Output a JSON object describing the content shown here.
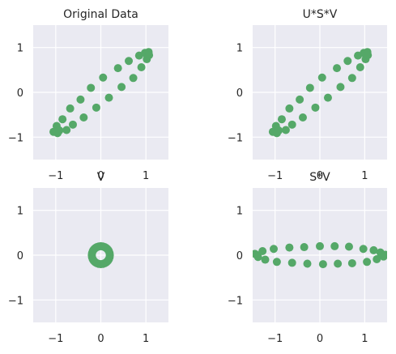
{
  "colors": {
    "face": "#EAEAF2",
    "grid": "#FFFFFF",
    "marker": "#55A868",
    "text": "#262626"
  },
  "chart_data": [
    {
      "type": "scatter",
      "title": "Original Data",
      "xlim": [
        -1.5,
        1.5
      ],
      "ylim": [
        -1.5,
        1.5
      ],
      "xticks": [
        -1,
        0,
        1
      ],
      "yticks": [
        -1,
        0,
        1
      ],
      "xtick_labels": [
        "−1",
        "0",
        "1"
      ],
      "ytick_labels": [
        "−1",
        "0",
        "1"
      ],
      "grid": true,
      "points": [
        [
          -1.05,
          -0.88
        ],
        [
          -0.96,
          -0.91
        ],
        [
          -0.98,
          -0.75
        ],
        [
          -0.92,
          -0.85
        ],
        [
          -0.85,
          -0.6
        ],
        [
          -0.76,
          -0.84
        ],
        [
          -0.68,
          -0.36
        ],
        [
          -0.62,
          -0.72
        ],
        [
          -0.45,
          -0.16
        ],
        [
          -0.38,
          -0.56
        ],
        [
          -0.22,
          0.1
        ],
        [
          -0.1,
          -0.34
        ],
        [
          0.05,
          0.33
        ],
        [
          0.18,
          -0.12
        ],
        [
          0.38,
          0.54
        ],
        [
          0.46,
          0.12
        ],
        [
          0.62,
          0.7
        ],
        [
          0.72,
          0.32
        ],
        [
          0.85,
          0.82
        ],
        [
          0.9,
          0.56
        ],
        [
          0.98,
          0.88
        ],
        [
          1.02,
          0.74
        ],
        [
          1.06,
          0.9
        ],
        [
          1.07,
          0.83
        ]
      ]
    },
    {
      "type": "scatter",
      "title": "U*S*V",
      "xlim": [
        -1.5,
        1.5
      ],
      "ylim": [
        -1.5,
        1.5
      ],
      "xticks": [
        -1,
        0,
        1
      ],
      "yticks": [
        -1,
        0,
        1
      ],
      "xtick_labels": [
        "−1",
        "0",
        "1"
      ],
      "ytick_labels": [
        "−1",
        "0",
        "1"
      ],
      "grid": true,
      "points": [
        [
          -1.05,
          -0.88
        ],
        [
          -0.96,
          -0.91
        ],
        [
          -0.98,
          -0.75
        ],
        [
          -0.92,
          -0.85
        ],
        [
          -0.85,
          -0.6
        ],
        [
          -0.76,
          -0.84
        ],
        [
          -0.68,
          -0.36
        ],
        [
          -0.62,
          -0.72
        ],
        [
          -0.45,
          -0.16
        ],
        [
          -0.38,
          -0.56
        ],
        [
          -0.22,
          0.1
        ],
        [
          -0.1,
          -0.34
        ],
        [
          0.05,
          0.33
        ],
        [
          0.18,
          -0.12
        ],
        [
          0.38,
          0.54
        ],
        [
          0.46,
          0.12
        ],
        [
          0.62,
          0.7
        ],
        [
          0.72,
          0.32
        ],
        [
          0.85,
          0.82
        ],
        [
          0.9,
          0.56
        ],
        [
          0.98,
          0.88
        ],
        [
          1.02,
          0.74
        ],
        [
          1.06,
          0.9
        ],
        [
          1.07,
          0.83
        ]
      ]
    },
    {
      "type": "scatter",
      "title": "V",
      "xlim": [
        -1.5,
        1.5
      ],
      "ylim": [
        -1.5,
        1.5
      ],
      "xticks": [
        -1,
        0,
        1
      ],
      "yticks": [
        -1,
        0,
        1
      ],
      "xtick_labels": [
        "−1",
        "0",
        "1"
      ],
      "ytick_labels": [
        "−1",
        "0",
        "1"
      ],
      "grid": true,
      "points": [
        [
          0.2,
          0.0
        ],
        [
          0.195,
          0.045
        ],
        [
          0.18,
          0.087
        ],
        [
          0.162,
          0.118
        ],
        [
          0.141,
          0.141
        ],
        [
          0.118,
          0.162
        ],
        [
          0.087,
          0.18
        ],
        [
          0.045,
          0.195
        ],
        [
          0.0,
          0.2
        ],
        [
          -0.045,
          0.195
        ],
        [
          -0.087,
          0.18
        ],
        [
          -0.118,
          0.162
        ],
        [
          -0.141,
          0.141
        ],
        [
          -0.162,
          0.118
        ],
        [
          -0.18,
          0.087
        ],
        [
          -0.195,
          0.045
        ],
        [
          -0.2,
          0.0
        ],
        [
          -0.195,
          -0.045
        ],
        [
          -0.18,
          -0.087
        ],
        [
          -0.162,
          -0.118
        ],
        [
          -0.141,
          -0.141
        ],
        [
          -0.118,
          -0.162
        ],
        [
          -0.087,
          -0.18
        ],
        [
          -0.045,
          -0.195
        ],
        [
          0.0,
          -0.2
        ],
        [
          0.045,
          -0.195
        ],
        [
          0.087,
          -0.18
        ],
        [
          0.118,
          -0.162
        ],
        [
          0.141,
          -0.141
        ],
        [
          0.162,
          -0.118
        ],
        [
          0.18,
          -0.087
        ],
        [
          0.195,
          -0.045
        ]
      ]
    },
    {
      "type": "scatter",
      "title": "S*V",
      "xlim": [
        -1.5,
        1.5
      ],
      "ylim": [
        -1.5,
        1.5
      ],
      "xticks": [
        -1,
        0,
        1
      ],
      "yticks": [
        -1,
        0,
        1
      ],
      "xtick_labels": [
        "−1",
        "0",
        "1"
      ],
      "ytick_labels": [
        "−1",
        "0",
        "1"
      ],
      "grid": true,
      "points": [
        [
          -1.45,
          0.03
        ],
        [
          -1.4,
          0.0
        ],
        [
          -1.38,
          -0.04
        ],
        [
          -1.28,
          0.09
        ],
        [
          -1.22,
          -0.1
        ],
        [
          -1.03,
          0.14
        ],
        [
          -0.96,
          -0.15
        ],
        [
          -0.68,
          0.17
        ],
        [
          -0.62,
          -0.17
        ],
        [
          -0.35,
          0.18
        ],
        [
          -0.28,
          -0.19
        ],
        [
          0.0,
          0.2
        ],
        [
          0.07,
          -0.2
        ],
        [
          0.33,
          0.2
        ],
        [
          0.4,
          -0.19
        ],
        [
          0.65,
          0.19
        ],
        [
          0.72,
          -0.18
        ],
        [
          0.97,
          0.14
        ],
        [
          1.05,
          -0.15
        ],
        [
          1.2,
          0.11
        ],
        [
          1.27,
          -0.09
        ],
        [
          1.35,
          0.06
        ],
        [
          1.42,
          -0.03
        ],
        [
          1.46,
          0.01
        ]
      ]
    }
  ]
}
